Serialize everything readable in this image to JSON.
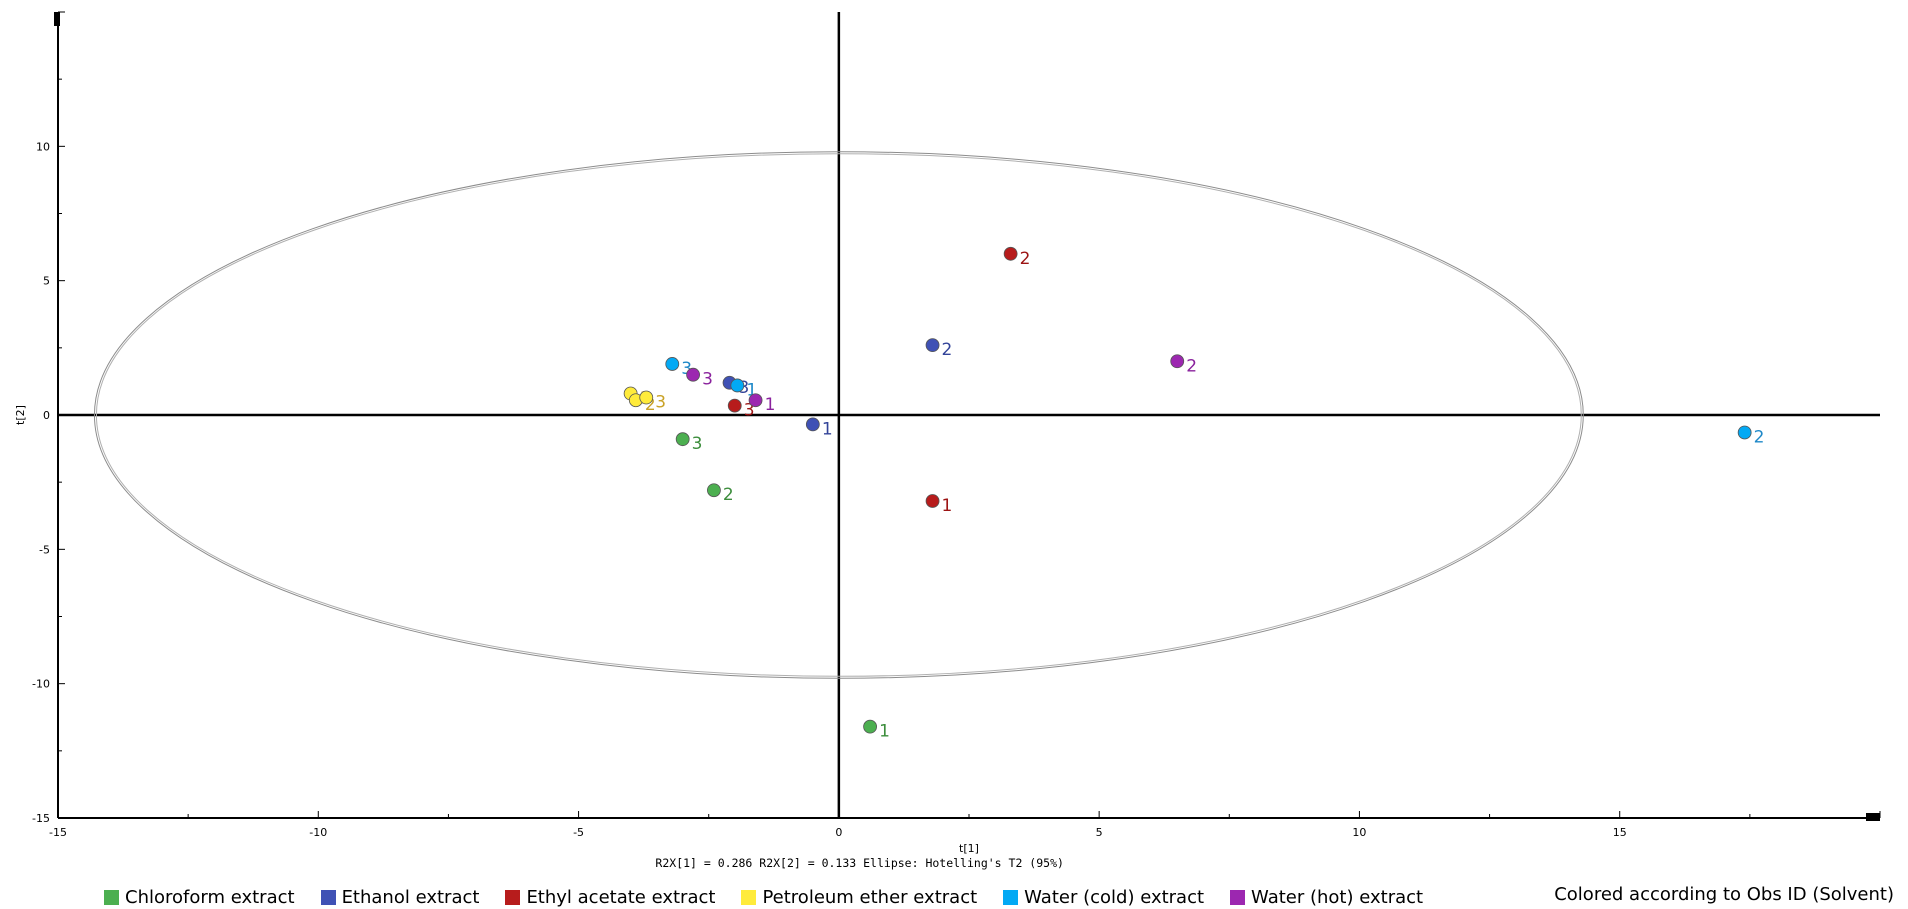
{
  "chart_data": {
    "type": "scatter",
    "xlabel": "t[1]",
    "ylabel": "t[2]",
    "xlim": [
      -15,
      20
    ],
    "ylim": [
      -15,
      15
    ],
    "x_ticks": [
      -15,
      -10,
      -5,
      0,
      5,
      10,
      15
    ],
    "y_ticks": [
      -15,
      -10,
      -5,
      0,
      5,
      10
    ],
    "ellipse": {
      "semi_axis_x": 14.3,
      "semi_axis_y": 9.8,
      "name": "Hotelling's T2 (95%)"
    },
    "footer": "R2X[1] = 0.286 R2X[2] = 0.133 Ellipse: Hotelling's T2 (95%)",
    "colored_by": "Colored according to Obs ID (Solvent)",
    "series": [
      {
        "name": "Chloroform extract",
        "color": "#4caf50",
        "label_color": "#3c8d3c",
        "points": [
          {
            "x": 0.6,
            "y": -11.6,
            "label": "1"
          },
          {
            "x": -2.4,
            "y": -2.8,
            "label": "2"
          },
          {
            "x": -3.0,
            "y": -0.9,
            "label": "3"
          }
        ]
      },
      {
        "name": "Ethanol extract",
        "color": "#3f51b5",
        "label_color": "#334499",
        "points": [
          {
            "x": -0.5,
            "y": -0.35,
            "label": "1"
          },
          {
            "x": 1.8,
            "y": 2.6,
            "label": "2"
          },
          {
            "x": -2.1,
            "y": 1.2,
            "label": "3"
          }
        ]
      },
      {
        "name": "Ethyl acetate extract",
        "color": "#b71c1c",
        "label_color": "#9c1414",
        "points": [
          {
            "x": 1.8,
            "y": -3.2,
            "label": "1"
          },
          {
            "x": 3.3,
            "y": 6.0,
            "label": "2"
          },
          {
            "x": -2.0,
            "y": 0.35,
            "label": "3"
          }
        ]
      },
      {
        "name": "Petroleum ether extract",
        "color": "#ffeb3b",
        "label_color": "#c9a227",
        "points": [
          {
            "x": -4.0,
            "y": 0.8,
            "label": "1"
          },
          {
            "x": -3.9,
            "y": 0.55,
            "label": "2"
          },
          {
            "x": -3.7,
            "y": 0.65,
            "label": "3"
          }
        ]
      },
      {
        "name": "Water (cold) extract",
        "color": "#03a9f4",
        "label_color": "#1e88c8",
        "points": [
          {
            "x": -1.95,
            "y": 1.1,
            "label": "1"
          },
          {
            "x": 17.4,
            "y": -0.65,
            "label": "2"
          },
          {
            "x": -3.2,
            "y": 1.9,
            "label": "3"
          }
        ]
      },
      {
        "name": "Water (hot) extract",
        "color": "#9c27b0",
        "label_color": "#8a229d",
        "points": [
          {
            "x": -1.6,
            "y": 0.55,
            "label": "1"
          },
          {
            "x": 6.5,
            "y": 2.0,
            "label": "2"
          },
          {
            "x": -2.8,
            "y": 1.5,
            "label": "3"
          }
        ]
      }
    ]
  }
}
